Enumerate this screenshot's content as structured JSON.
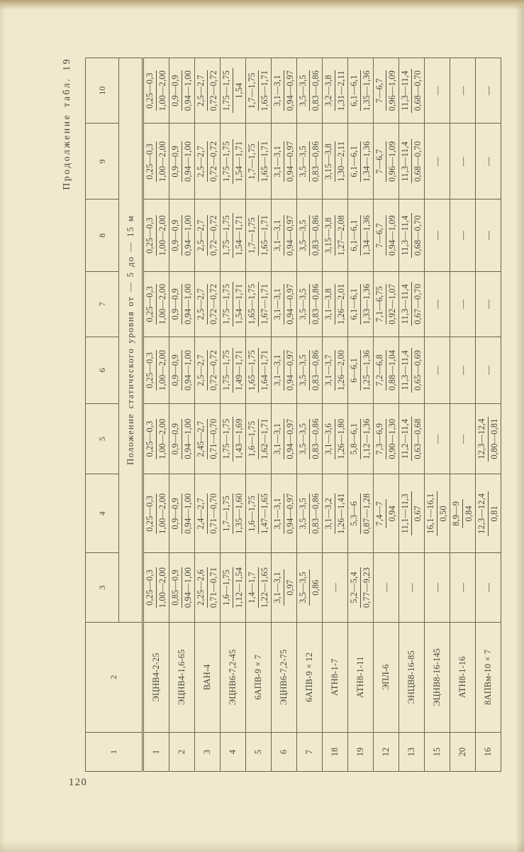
{
  "page": {
    "number": "120",
    "continuation_note": "Продолжение табл. 19"
  },
  "table": {
    "col_numbers": [
      "1",
      "2",
      "3",
      "4",
      "5",
      "6",
      "7",
      "8",
      "9",
      "10"
    ],
    "span_header": "Положение  статического  уровня  от — 5  до — 15 м",
    "empty_marker": "—",
    "rows": [
      {
        "no": "1",
        "name": "ЭЦНВ4-2-25",
        "cells": [
          [
            "0,25—0,3",
            "1,00—2,00"
          ],
          [
            "0,25—0,3",
            "1,00—2,00"
          ],
          [
            "0,25—0,3",
            "1,00—2,00"
          ],
          [
            "0,25—0,3",
            "1,00—2,00"
          ],
          [
            "0,25—0,3",
            "1,00—2,00"
          ],
          [
            "0,25—0,3",
            "1,00—2,00"
          ],
          [
            "0,25—0,3",
            "1,00—2,00"
          ],
          [
            "0,25—0,3",
            "1,00—2,00"
          ]
        ]
      },
      {
        "no": "2",
        "name": "ЭЦНВ4-1,6-65",
        "cells": [
          [
            "0,85—0,9",
            "0,94—1,00"
          ],
          [
            "0,9—0,9",
            "0,94—1,00"
          ],
          [
            "0,9—0,9",
            "0,94—1,00"
          ],
          [
            "0,9—0,9",
            "0,94—1,00"
          ],
          [
            "0,9—0,9",
            "0,94—1,00"
          ],
          [
            "0,9—0,9",
            "0,94—1,00"
          ],
          [
            "0,9—0,9",
            "0,94—1,00"
          ],
          [
            "0,9—0,9",
            "0,94—1,00"
          ]
        ]
      },
      {
        "no": "3",
        "name": "ВАН-4",
        "cells": [
          [
            "2,25—2,6",
            "0,71—0,71"
          ],
          [
            "2,4—2,7",
            "0,71—0,70"
          ],
          [
            "2,45—2,7",
            "0,71—0,70"
          ],
          [
            "2,5—2,7",
            "0,72—0,72"
          ],
          [
            "2,5—2,7",
            "0,72—0,72"
          ],
          [
            "2,5—2,7",
            "0,72—0,72"
          ],
          [
            "2,5—2,7",
            "0,72—0,72"
          ],
          [
            "2,5—2,7",
            "0,72—0,72"
          ]
        ]
      },
      {
        "no": "4",
        "name": "ЭЦНВ6-7,2-45",
        "cells": [
          [
            "1,6—1,75",
            "1,12—1,54"
          ],
          [
            "1,7—1,75",
            "1,35—1,60"
          ],
          [
            "1,75—1,75",
            "1,43—1,69"
          ],
          [
            "1,75—1,75",
            "1,49—1,71"
          ],
          [
            "1,75—1,75",
            "1,54—1,71"
          ],
          [
            "1,75—1,75",
            "1,54—1,71"
          ],
          [
            "1,75—1,75",
            "1,54—1,71"
          ],
          [
            "1,75—1,75",
            "1,54"
          ]
        ]
      },
      {
        "no": "5",
        "name": "6АПВ-9 × 7",
        "cells": [
          [
            "1,4—1,7",
            "1,22—1,65"
          ],
          [
            "1,6—1,75",
            "1,47—1,65"
          ],
          [
            "1,6—1,75",
            "1,62—1,71"
          ],
          [
            "1,65—1,75",
            "1,64—1,71"
          ],
          [
            "1,65—1,75",
            "1,67—1,71"
          ],
          [
            "1,7—1,75",
            "1,65—1,71"
          ],
          [
            "1,7—1,75",
            "1,65—1,71"
          ],
          [
            "1,7—1,75",
            "1,65—1,71"
          ]
        ]
      },
      {
        "no": "6",
        "name": "ЭЦНВ6-7,2-75",
        "cells": [
          [
            "3,1—3,1",
            "0,97"
          ],
          [
            "3,1—3,1",
            "0,94—0,97"
          ],
          [
            "3,1—3,1",
            "0,94—0,97"
          ],
          [
            "3,1—3,1",
            "0,94—0,97"
          ],
          [
            "3,1—3,1",
            "0,94—0,97"
          ],
          [
            "3,1—3,1",
            "0,94—0,97"
          ],
          [
            "3,1—3,1",
            "0,94—0,97"
          ],
          [
            "3,1—3,1",
            "0,94—0,97"
          ]
        ]
      },
      {
        "no": "7",
        "name": "6АПВ-9 × 12",
        "cells": [
          [
            "3,5—3,5",
            "0,86"
          ],
          [
            "3,5—3,5",
            "0,83—0,86"
          ],
          [
            "3,5—3,5",
            "0,83—0,86"
          ],
          [
            "3,5—3,5",
            "0,83—0,86"
          ],
          [
            "3,5—3,5",
            "0,83—0,86"
          ],
          [
            "3,5—3,5",
            "0,83—0,86"
          ],
          [
            "3,5—3,5",
            "0,83—0,86"
          ],
          [
            "3,5—3,5",
            "0,83—0,86"
          ]
        ]
      },
      {
        "no": "18",
        "name": "АТН8-1-7",
        "cells": [
          "—",
          [
            "3,1—3,2",
            "1,26—1,41"
          ],
          [
            "3,1—3,6",
            "1,26—1,80"
          ],
          [
            "3,1—3,7",
            "1,26—2,00"
          ],
          [
            "3,1—3,8",
            "1,26—2,01"
          ],
          [
            "3,15—3,8",
            "1,27—2,08"
          ],
          [
            "3,15—3,8",
            "1,30—2,11"
          ],
          [
            "3,2—3,8",
            "1,31—2,11"
          ]
        ]
      },
      {
        "no": "19",
        "name": "АТН8-1-11",
        "cells": [
          [
            "5,2—5,4",
            "0,77—9,23"
          ],
          [
            "5,3—6",
            "0,87—1,28"
          ],
          [
            "5,8—6,1",
            "1,12—1,36"
          ],
          [
            "6—6,1",
            "1,25—1,36"
          ],
          [
            "6,1—6,1",
            "1,33—1,36"
          ],
          [
            "6,1—6,1",
            "1,34—1,36"
          ],
          [
            "6,1—6,1",
            "1,34—1,36"
          ],
          [
            "6,1—6,1",
            "1,35—1,36"
          ]
        ]
      },
      {
        "no": "12",
        "name": "ЭПЛ-6",
        "cells": [
          "—",
          [
            "7,4—7",
            "0,94"
          ],
          [
            "7,3—6,9",
            "0,90—1,30"
          ],
          [
            "7,2—6,8",
            "0,88—1,04"
          ],
          [
            "7,1—6,75",
            "0,92—1,07"
          ],
          [
            "7—6,7",
            "0,94—1,09"
          ],
          [
            "7—6,7",
            "0,96—1,09"
          ],
          [
            "7—6,7",
            "0,96—1,09"
          ]
        ]
      },
      {
        "no": "13",
        "name": "ЭНЦВ8-16-85",
        "cells": [
          "—",
          [
            "11,1—11,3",
            "0,67"
          ],
          [
            "11,2—11,4",
            "0,63—0,68"
          ],
          [
            "11,3—11,4",
            "0,65—0,69"
          ],
          [
            "11,3—11,4",
            "0,67—0,70"
          ],
          [
            "11,3—11,4",
            "0,68—0,70"
          ],
          [
            "11,3—11,4",
            "0,68—0,70"
          ],
          [
            "11,3—11,4",
            "0,68—0,70"
          ]
        ]
      },
      {
        "no": "15",
        "name": "ЭЦНВ8-16-145",
        "cells": [
          "—",
          [
            "16,1—16,1",
            "0,50"
          ],
          "—",
          "—",
          "—",
          "—",
          "—",
          "—"
        ]
      },
      {
        "no": "20",
        "name": "АТН8-1-16",
        "cells": [
          "—",
          [
            "8,9—9",
            "0,84"
          ],
          "—",
          "—",
          "—",
          "—",
          "—",
          "—"
        ]
      },
      {
        "no": "16",
        "name": "8АПВм-10 × 7",
        "cells": [
          "—",
          [
            "12,3—12,4",
            "0,81"
          ],
          [
            "12,3—12,4",
            "0,80—0,81"
          ],
          "—",
          "—",
          "—",
          "—",
          "—"
        ]
      }
    ]
  }
}
